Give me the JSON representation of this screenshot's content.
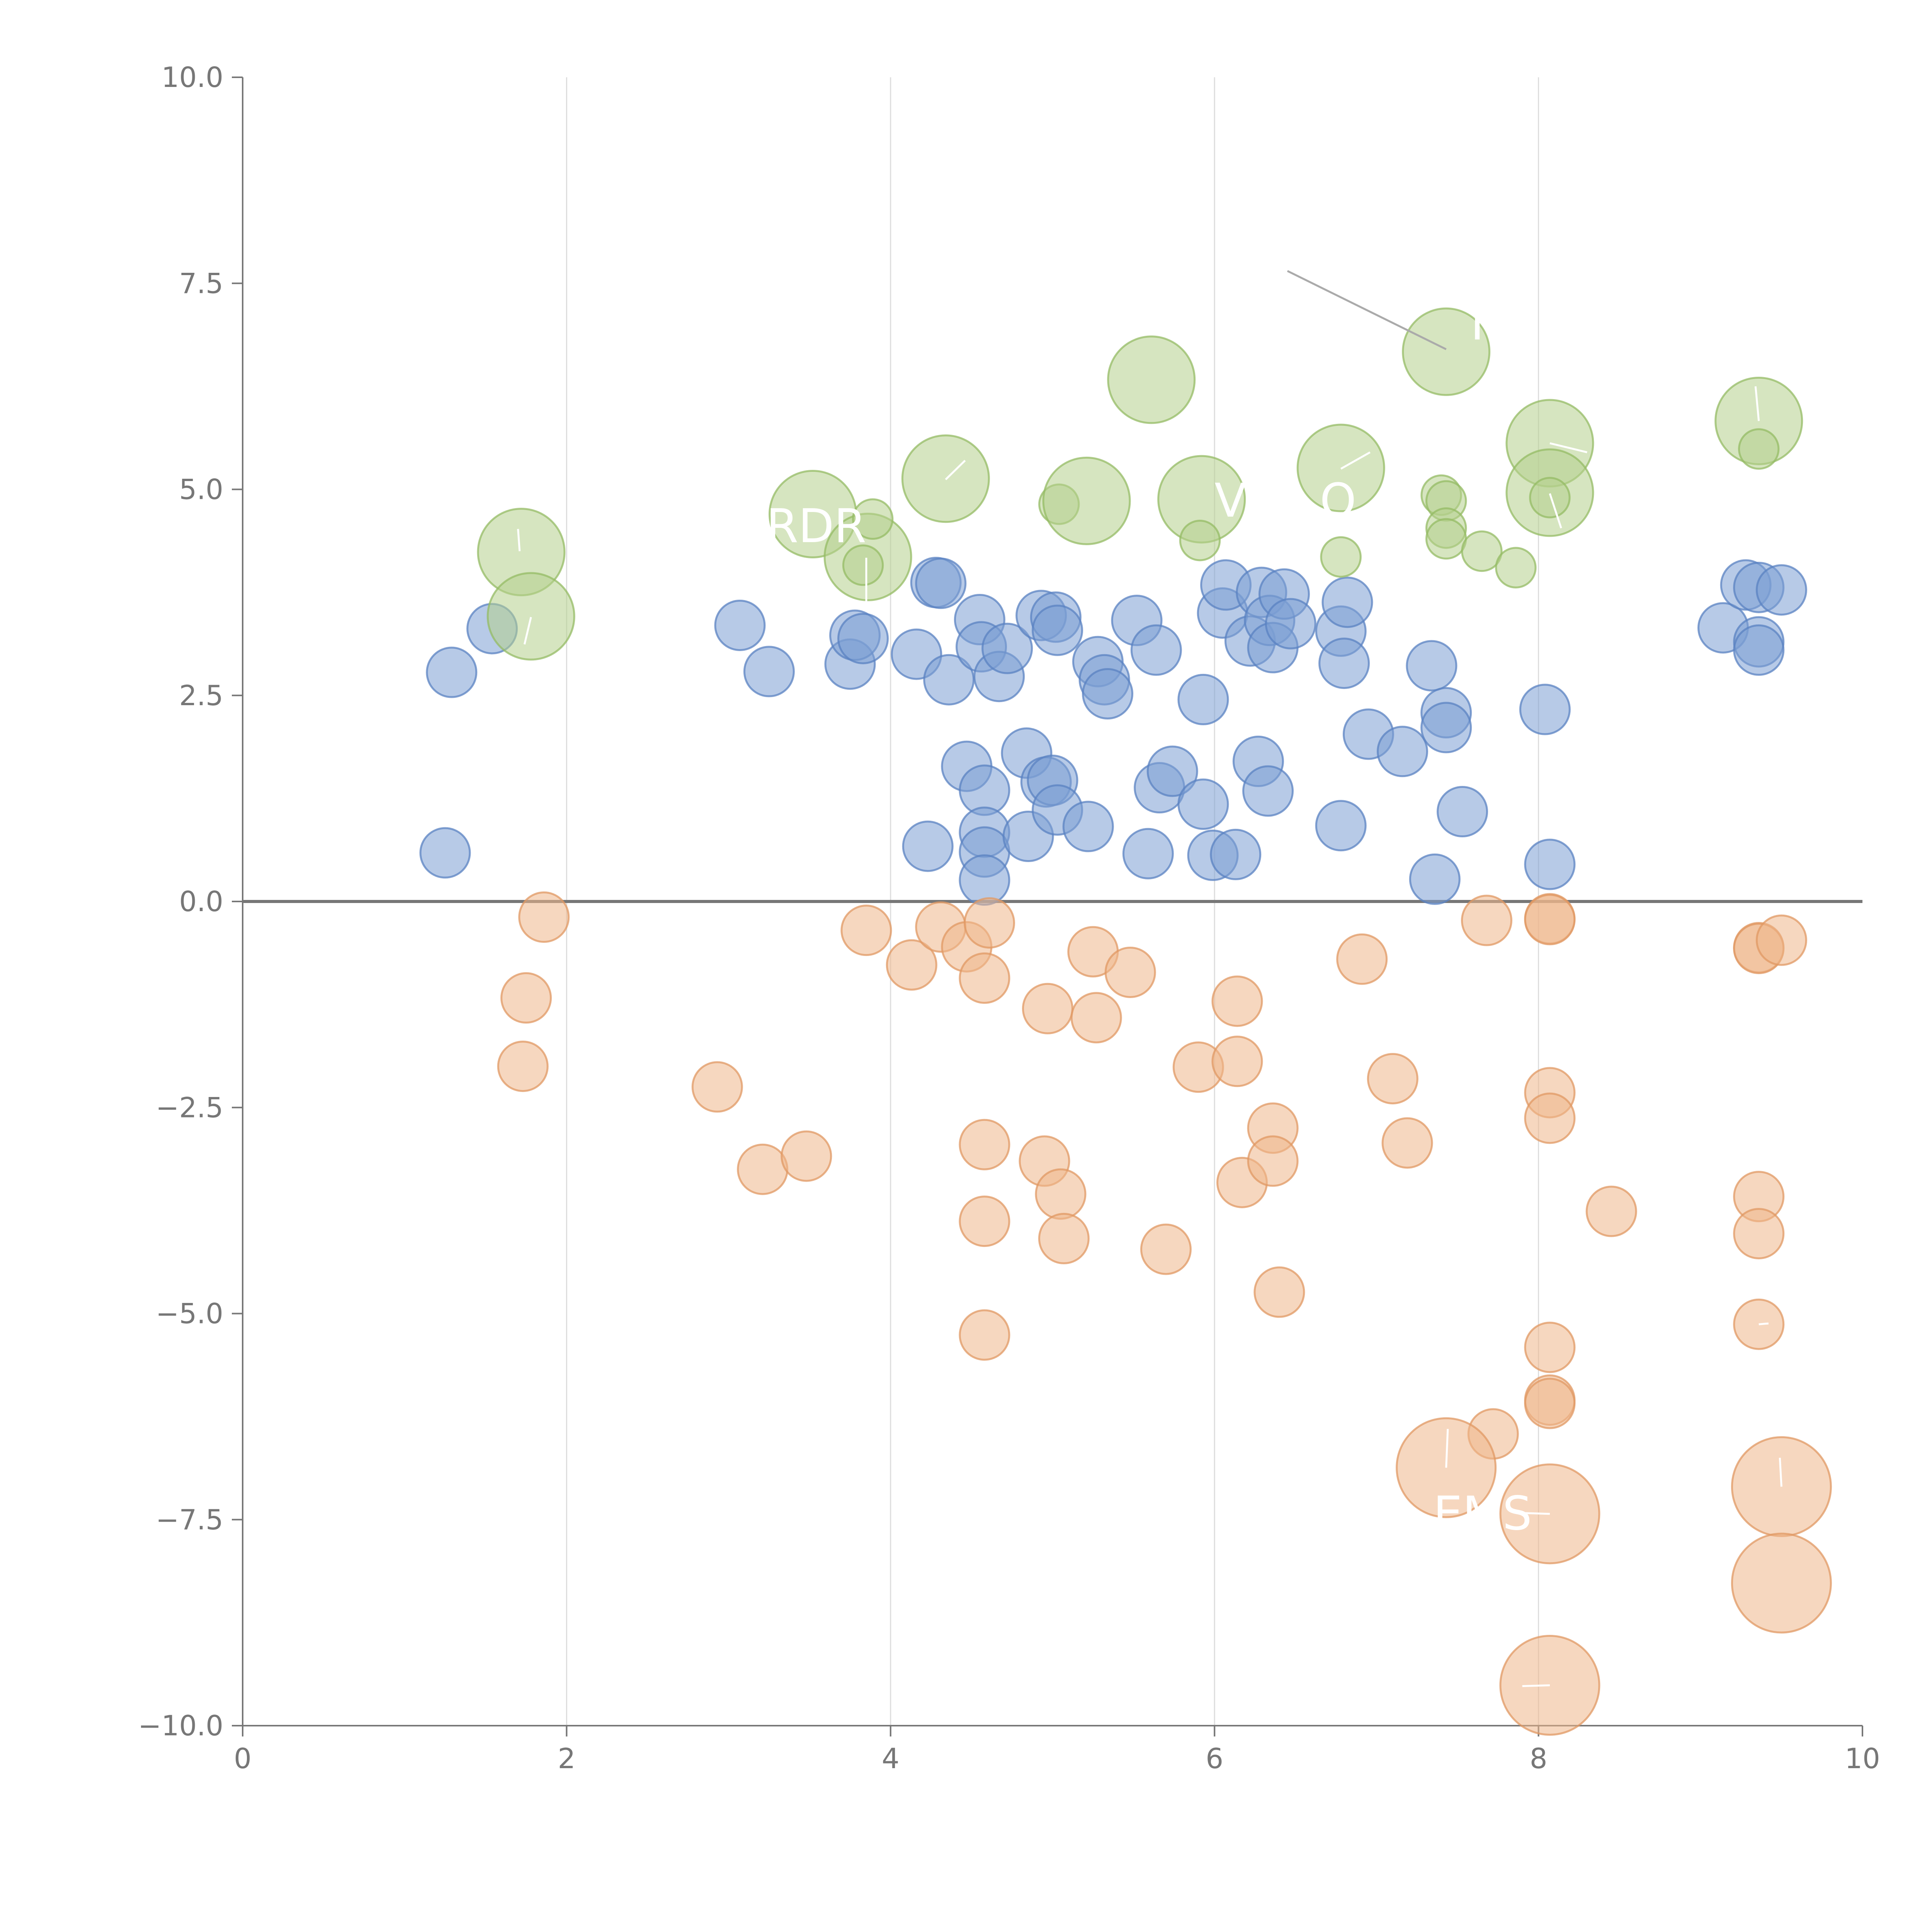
{
  "chart_data": {
    "type": "scatter",
    "title": "",
    "xlabel": "",
    "ylabel": "",
    "xlim": [
      0,
      10
    ],
    "ylim": [
      -10,
      10
    ],
    "x_ticks": [
      "0",
      "2",
      "4",
      "6",
      "8",
      "10"
    ],
    "y_ticks": [
      "10.0",
      "7.5",
      "5.0",
      "2.5",
      "0.0",
      "−2.5",
      "−5.0",
      "−7.5",
      "−10.0"
    ],
    "grid": {
      "vertical": true,
      "horizontal": false
    },
    "legend": "none",
    "reference_line_y": 0,
    "series": [
      {
        "color": "#7b9fd4",
        "stroke": "#5a82c2",
        "points": [
          {
            "x": 1.25,
            "y": 0.59,
            "s": 1
          },
          {
            "x": 1.29,
            "y": 2.78,
            "s": 1
          },
          {
            "x": 1.54,
            "y": 3.31,
            "s": 1
          },
          {
            "x": 3.07,
            "y": 3.35,
            "s": 1
          },
          {
            "x": 3.25,
            "y": 2.79,
            "s": 1
          },
          {
            "x": 3.75,
            "y": 2.88,
            "s": 1
          },
          {
            "x": 3.78,
            "y": 3.23,
            "s": 1
          },
          {
            "x": 3.83,
            "y": 3.19,
            "s": 1
          },
          {
            "x": 4.16,
            "y": 3.0,
            "s": 1
          },
          {
            "x": 4.23,
            "y": 0.67,
            "s": 1
          },
          {
            "x": 4.28,
            "y": 3.87,
            "s": 1
          },
          {
            "x": 4.31,
            "y": 3.86,
            "s": 1
          },
          {
            "x": 4.36,
            "y": 2.69,
            "s": 1
          },
          {
            "x": 4.47,
            "y": 1.64,
            "s": 1
          },
          {
            "x": 4.55,
            "y": 3.42,
            "s": 1
          },
          {
            "x": 4.56,
            "y": 3.09,
            "s": 1
          },
          {
            "x": 4.58,
            "y": 1.35,
            "s": 1
          },
          {
            "x": 4.58,
            "y": 0.84,
            "s": 1
          },
          {
            "x": 4.58,
            "y": 0.6,
            "s": 1
          },
          {
            "x": 4.58,
            "y": 0.26,
            "s": 1
          },
          {
            "x": 4.67,
            "y": 2.73,
            "s": 1
          },
          {
            "x": 4.72,
            "y": 3.07,
            "s": 1
          },
          {
            "x": 4.84,
            "y": 1.8,
            "s": 1
          },
          {
            "x": 4.85,
            "y": 0.79,
            "s": 1
          },
          {
            "x": 4.93,
            "y": 3.47,
            "s": 1
          },
          {
            "x": 4.96,
            "y": 1.45,
            "s": 1
          },
          {
            "x": 5.0,
            "y": 1.47,
            "s": 1
          },
          {
            "x": 5.02,
            "y": 3.45,
            "s": 1
          },
          {
            "x": 5.03,
            "y": 3.29,
            "s": 1
          },
          {
            "x": 5.03,
            "y": 1.11,
            "s": 1
          },
          {
            "x": 5.22,
            "y": 0.91,
            "s": 1
          },
          {
            "x": 5.28,
            "y": 2.91,
            "s": 1
          },
          {
            "x": 5.32,
            "y": 2.69,
            "s": 1
          },
          {
            "x": 5.34,
            "y": 2.52,
            "s": 1
          },
          {
            "x": 5.52,
            "y": 3.41,
            "s": 1
          },
          {
            "x": 5.59,
            "y": 0.58,
            "s": 1
          },
          {
            "x": 5.64,
            "y": 3.05,
            "s": 1
          },
          {
            "x": 5.66,
            "y": 1.38,
            "s": 1
          },
          {
            "x": 5.74,
            "y": 1.58,
            "s": 1
          },
          {
            "x": 5.93,
            "y": 2.45,
            "s": 1
          },
          {
            "x": 5.93,
            "y": 1.18,
            "s": 1
          },
          {
            "x": 5.99,
            "y": 0.56,
            "s": 1
          },
          {
            "x": 6.05,
            "y": 3.5,
            "s": 1
          },
          {
            "x": 6.07,
            "y": 3.84,
            "s": 1
          },
          {
            "x": 6.13,
            "y": 0.57,
            "s": 1
          },
          {
            "x": 6.22,
            "y": 3.16,
            "s": 1
          },
          {
            "x": 6.27,
            "y": 1.7,
            "s": 1
          },
          {
            "x": 6.29,
            "y": 3.75,
            "s": 1
          },
          {
            "x": 6.33,
            "y": 1.34,
            "s": 1
          },
          {
            "x": 6.34,
            "y": 3.41,
            "s": 1
          },
          {
            "x": 6.36,
            "y": 3.08,
            "s": 1
          },
          {
            "x": 6.43,
            "y": 3.73,
            "s": 1
          },
          {
            "x": 6.47,
            "y": 3.37,
            "s": 1
          },
          {
            "x": 6.78,
            "y": 3.28,
            "s": 1
          },
          {
            "x": 6.78,
            "y": 0.92,
            "s": 1
          },
          {
            "x": 6.8,
            "y": 2.89,
            "s": 1
          },
          {
            "x": 6.82,
            "y": 3.63,
            "s": 1
          },
          {
            "x": 6.95,
            "y": 2.03,
            "s": 1
          },
          {
            "x": 7.16,
            "y": 1.82,
            "s": 1
          },
          {
            "x": 7.34,
            "y": 2.86,
            "s": 1
          },
          {
            "x": 7.36,
            "y": 0.27,
            "s": 1
          },
          {
            "x": 7.43,
            "y": 2.29,
            "s": 1
          },
          {
            "x": 7.43,
            "y": 2.11,
            "s": 1
          },
          {
            "x": 7.53,
            "y": 1.09,
            "s": 1
          },
          {
            "x": 8.04,
            "y": 2.33,
            "s": 1
          },
          {
            "x": 8.07,
            "y": 0.45,
            "s": 1
          },
          {
            "x": 9.14,
            "y": 3.32,
            "s": 1
          },
          {
            "x": 9.28,
            "y": 3.84,
            "s": 1
          },
          {
            "x": 9.36,
            "y": 3.81,
            "s": 1
          },
          {
            "x": 9.36,
            "y": 3.15,
            "s": 1
          },
          {
            "x": 9.36,
            "y": 3.05,
            "s": 1
          },
          {
            "x": 9.5,
            "y": 3.78,
            "s": 1
          }
        ]
      },
      {
        "color": "#b5d08c",
        "stroke": "#94bb64",
        "points": [
          {
            "x": 1.72,
            "y": 4.24,
            "s": 1.75
          },
          {
            "x": 1.78,
            "y": 3.46,
            "s": 1.75
          },
          {
            "x": 3.52,
            "y": 4.7,
            "s": 1.75
          },
          {
            "x": 3.86,
            "y": 4.18,
            "s": 1.75
          },
          {
            "x": 3.83,
            "y": 4.08,
            "s": 0.8
          },
          {
            "x": 3.89,
            "y": 4.64,
            "s": 0.8
          },
          {
            "x": 4.34,
            "y": 5.13,
            "s": 1.75
          },
          {
            "x": 5.04,
            "y": 4.82,
            "s": 0.8
          },
          {
            "x": 5.21,
            "y": 4.86,
            "s": 1.75
          },
          {
            "x": 5.61,
            "y": 6.33,
            "s": 1.75
          },
          {
            "x": 5.92,
            "y": 4.88,
            "s": 1.75
          },
          {
            "x": 5.91,
            "y": 4.38,
            "s": 0.8
          },
          {
            "x": 6.78,
            "y": 5.26,
            "s": 1.75
          },
          {
            "x": 6.78,
            "y": 4.18,
            "s": 0.8
          },
          {
            "x": 7.4,
            "y": 4.93,
            "s": 0.8
          },
          {
            "x": 7.43,
            "y": 4.86,
            "s": 0.8
          },
          {
            "x": 7.43,
            "y": 4.53,
            "s": 0.8
          },
          {
            "x": 7.43,
            "y": 4.4,
            "s": 0.8
          },
          {
            "x": 7.43,
            "y": 6.67,
            "s": 1.75
          },
          {
            "x": 7.65,
            "y": 4.25,
            "s": 0.8
          },
          {
            "x": 7.86,
            "y": 4.05,
            "s": 0.8
          },
          {
            "x": 8.07,
            "y": 5.56,
            "s": 1.75
          },
          {
            "x": 8.07,
            "y": 4.96,
            "s": 1.75
          },
          {
            "x": 8.07,
            "y": 4.9,
            "s": 0.8
          },
          {
            "x": 9.36,
            "y": 5.83,
            "s": 1.75
          },
          {
            "x": 9.36,
            "y": 5.49,
            "s": 0.8
          }
        ]
      },
      {
        "color": "#efb68a",
        "stroke": "#e09863",
        "points": [
          {
            "x": 1.86,
            "y": -0.19,
            "s": 1
          },
          {
            "x": 1.75,
            "y": -1.17,
            "s": 1
          },
          {
            "x": 1.73,
            "y": -2.0,
            "s": 1
          },
          {
            "x": 2.93,
            "y": -2.25,
            "s": 1
          },
          {
            "x": 3.21,
            "y": -3.25,
            "s": 1
          },
          {
            "x": 3.48,
            "y": -3.09,
            "s": 1
          },
          {
            "x": 3.85,
            "y": -0.35,
            "s": 1
          },
          {
            "x": 4.13,
            "y": -0.77,
            "s": 1
          },
          {
            "x": 4.31,
            "y": -0.31,
            "s": 1
          },
          {
            "x": 4.47,
            "y": -0.55,
            "s": 1
          },
          {
            "x": 4.58,
            "y": -0.93,
            "s": 1
          },
          {
            "x": 4.61,
            "y": -0.26,
            "s": 1
          },
          {
            "x": 4.58,
            "y": -2.95,
            "s": 1
          },
          {
            "x": 4.58,
            "y": -3.88,
            "s": 1
          },
          {
            "x": 4.58,
            "y": -5.26,
            "s": 1
          },
          {
            "x": 4.95,
            "y": -3.15,
            "s": 1
          },
          {
            "x": 4.97,
            "y": -1.3,
            "s": 1
          },
          {
            "x": 5.05,
            "y": -3.55,
            "s": 1
          },
          {
            "x": 5.07,
            "y": -4.09,
            "s": 1
          },
          {
            "x": 5.25,
            "y": -0.61,
            "s": 1
          },
          {
            "x": 5.27,
            "y": -1.41,
            "s": 1
          },
          {
            "x": 5.48,
            "y": -0.86,
            "s": 1
          },
          {
            "x": 5.7,
            "y": -4.22,
            "s": 1
          },
          {
            "x": 5.9,
            "y": -2.01,
            "s": 1
          },
          {
            "x": 6.14,
            "y": -1.21,
            "s": 1
          },
          {
            "x": 6.14,
            "y": -1.94,
            "s": 1
          },
          {
            "x": 6.17,
            "y": -3.41,
            "s": 1
          },
          {
            "x": 6.36,
            "y": -2.75,
            "s": 1
          },
          {
            "x": 6.36,
            "y": -3.15,
            "s": 1
          },
          {
            "x": 6.4,
            "y": -4.74,
            "s": 1
          },
          {
            "x": 6.91,
            "y": -0.7,
            "s": 1
          },
          {
            "x": 7.1,
            "y": -2.15,
            "s": 1
          },
          {
            "x": 7.19,
            "y": -2.93,
            "s": 1
          },
          {
            "x": 7.68,
            "y": -0.23,
            "s": 1
          },
          {
            "x": 8.07,
            "y": -0.21,
            "s": 1
          },
          {
            "x": 8.07,
            "y": -0.22,
            "s": 1
          },
          {
            "x": 8.07,
            "y": -2.32,
            "s": 1
          },
          {
            "x": 8.07,
            "y": -2.63,
            "s": 1
          },
          {
            "x": 8.45,
            "y": -3.76,
            "s": 1
          },
          {
            "x": 8.07,
            "y": -5.41,
            "s": 1
          },
          {
            "x": 8.07,
            "y": -6.05,
            "s": 1
          },
          {
            "x": 8.07,
            "y": -6.09,
            "s": 1
          },
          {
            "x": 7.72,
            "y": -6.46,
            "s": 1
          },
          {
            "x": 7.43,
            "y": -6.87,
            "s": 2
          },
          {
            "x": 8.07,
            "y": -7.43,
            "s": 2
          },
          {
            "x": 8.07,
            "y": -9.51,
            "s": 2
          },
          {
            "x": 9.36,
            "y": -0.56,
            "s": 1
          },
          {
            "x": 9.36,
            "y": -0.57,
            "s": 1
          },
          {
            "x": 9.5,
            "y": -0.47,
            "s": 1
          },
          {
            "x": 9.36,
            "y": -3.58,
            "s": 1
          },
          {
            "x": 9.36,
            "y": -4.03,
            "s": 1
          },
          {
            "x": 9.36,
            "y": -5.13,
            "s": 1
          },
          {
            "x": 9.5,
            "y": -7.1,
            "s": 2
          },
          {
            "x": 9.5,
            "y": -8.27,
            "s": 2
          }
        ]
      }
    ],
    "annotations": [
      {
        "text": "RDR",
        "x": 3.85,
        "y": 4.36,
        "anchor": "end"
      },
      {
        "text": "V",
        "x": 6.0,
        "y": 4.67,
        "anchor": "start"
      },
      {
        "text": "O",
        "x": 6.65,
        "y": 4.67,
        "anchor": "start"
      },
      {
        "text": "F",
        "x": 7.58,
        "y": 6.82,
        "anchor": "start"
      },
      {
        "text": "'",
        "x": 5.98,
        "y": 6.82,
        "anchor": "start"
      },
      {
        "text": "EMS",
        "x": 7.35,
        "y": -7.62,
        "anchor": "start"
      }
    ],
    "leader_lines": [
      {
        "x1": 6.45,
        "y1": 7.65,
        "x2": 7.43,
        "y2": 6.7,
        "color": "#aaaaaa"
      },
      {
        "x1": 1.71,
        "y1": 4.25,
        "x2": 1.7,
        "y2": 4.52,
        "color": "#ffffff"
      },
      {
        "x1": 1.78,
        "y1": 3.45,
        "x2": 1.74,
        "y2": 3.12,
        "color": "#ffffff"
      },
      {
        "x1": 4.34,
        "y1": 5.12,
        "x2": 4.46,
        "y2": 5.35,
        "color": "#ffffff"
      },
      {
        "x1": 6.78,
        "y1": 5.25,
        "x2": 6.96,
        "y2": 5.45,
        "color": "#ffffff"
      },
      {
        "x1": 8.07,
        "y1": 5.56,
        "x2": 8.3,
        "y2": 5.45,
        "color": "#ffffff"
      },
      {
        "x1": 8.07,
        "y1": 4.95,
        "x2": 8.14,
        "y2": 4.53,
        "color": "#ffffff"
      },
      {
        "x1": 9.36,
        "y1": 5.83,
        "x2": 9.34,
        "y2": 6.25,
        "color": "#ffffff"
      },
      {
        "x1": 3.85,
        "y1": 4.17,
        "x2": 3.85,
        "y2": 3.58,
        "color": "#ffffff"
      },
      {
        "x1": 7.43,
        "y1": -6.87,
        "x2": 7.44,
        "y2": -6.4,
        "color": "#ffffff"
      },
      {
        "x1": 8.07,
        "y1": -7.43,
        "x2": 7.9,
        "y2": -7.42,
        "color": "#ffffff"
      },
      {
        "x1": 8.07,
        "y1": -9.51,
        "x2": 7.9,
        "y2": -9.52,
        "color": "#ffffff"
      },
      {
        "x1": 9.5,
        "y1": -7.1,
        "x2": 9.49,
        "y2": -6.75,
        "color": "#ffffff"
      },
      {
        "x1": 9.36,
        "y1": -5.13,
        "x2": 9.42,
        "y2": -5.12,
        "color": "#ffffff"
      }
    ]
  }
}
